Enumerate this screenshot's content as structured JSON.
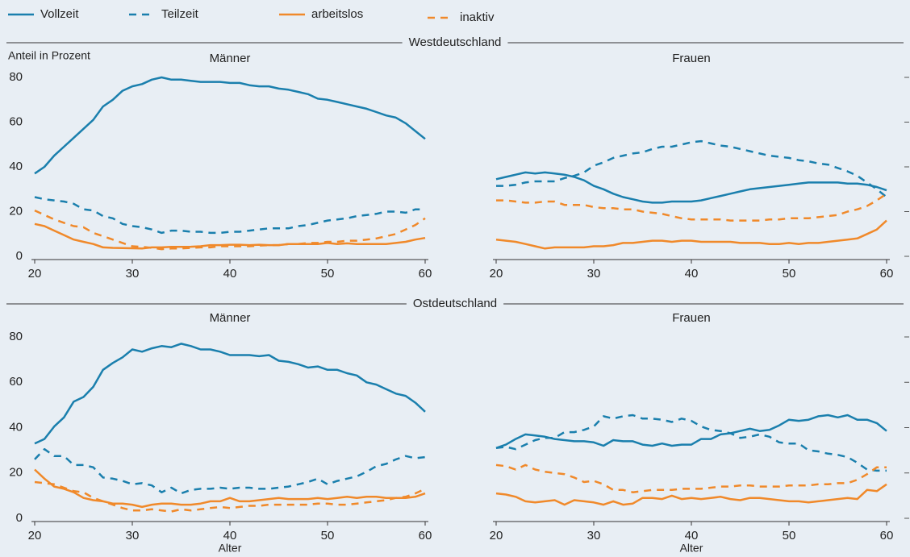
{
  "sections": [
    "Westdeutschland",
    "Ostdeutschland"
  ],
  "chart_data": [
    {
      "type": "line",
      "title": "Männer",
      "ylabel": "Anteil in Prozent",
      "section": 0,
      "yaxis_side": "left",
      "x": [
        20,
        21,
        22,
        23,
        24,
        25,
        26,
        27,
        28,
        29,
        30,
        31,
        32,
        33,
        34,
        35,
        36,
        37,
        38,
        39,
        40,
        41,
        42,
        43,
        44,
        45,
        46,
        47,
        48,
        49,
        50,
        51,
        52,
        53,
        54,
        55,
        56,
        57,
        58,
        59,
        60
      ],
      "xlim": [
        20,
        60
      ],
      "xticks": [
        20,
        30,
        40,
        50,
        60
      ],
      "ylim": [
        0,
        80
      ],
      "yticks": [
        0,
        20,
        40,
        60,
        80
      ],
      "series": [
        {
          "name": "Vollzeit",
          "color": "#1a7fad",
          "dashed": false,
          "values": [
            37,
            40,
            45,
            49,
            53,
            57,
            61,
            67,
            70,
            74,
            76,
            77,
            79,
            80,
            79,
            79,
            78.5,
            78,
            78,
            78,
            77.5,
            77.5,
            76.5,
            76,
            76,
            75,
            74.5,
            73.5,
            72.5,
            70.5,
            70,
            69,
            68,
            67,
            66,
            64.5,
            63,
            62,
            59.5,
            56,
            52.5
          ]
        },
        {
          "name": "Teilzeit",
          "color": "#1a7fad",
          "dashed": true,
          "values": [
            26.5,
            25.5,
            25,
            24.5,
            23.5,
            21,
            20.5,
            18,
            17,
            14.5,
            13.5,
            13,
            12,
            10.5,
            11.5,
            11.5,
            11,
            11,
            10.5,
            10.5,
            11,
            11,
            11.5,
            12,
            12.5,
            12.5,
            12.5,
            13.5,
            14,
            15,
            16,
            16.5,
            17,
            18,
            18.5,
            19,
            20,
            20,
            19.5,
            21,
            21
          ]
        },
        {
          "name": "arbeitslos",
          "color": "#f0892a",
          "dashed": false,
          "values": [
            14.5,
            13.5,
            11.5,
            9.5,
            7.5,
            6.5,
            5.5,
            4,
            3.8,
            3.7,
            3.6,
            3.5,
            4,
            4,
            4.2,
            4.2,
            4.3,
            4.5,
            5,
            5,
            5.2,
            5.2,
            5,
            5.2,
            5,
            5,
            5.5,
            5.5,
            5.5,
            5.5,
            6,
            5.5,
            5.8,
            5.5,
            5.5,
            5.5,
            5.5,
            6,
            6.5,
            7.5,
            8.2
          ]
        },
        {
          "name": "inaktiv",
          "color": "#f0892a",
          "dashed": true,
          "values": [
            20.5,
            18.5,
            16.5,
            15,
            13.5,
            13,
            10.5,
            9,
            7.5,
            6,
            4.5,
            4.2,
            3.8,
            3.2,
            3.5,
            3.5,
            3.8,
            4,
            4,
            4.5,
            4.5,
            4.5,
            4.5,
            4.8,
            5,
            5,
            5.5,
            5.5,
            6,
            6,
            6.5,
            6.5,
            7,
            7,
            7.5,
            8,
            9,
            10,
            12,
            14,
            17
          ]
        }
      ]
    },
    {
      "type": "line",
      "title": "Frauen",
      "section": 0,
      "yaxis_side": "right",
      "x": [
        20,
        21,
        22,
        23,
        24,
        25,
        26,
        27,
        28,
        29,
        30,
        31,
        32,
        33,
        34,
        35,
        36,
        37,
        38,
        39,
        40,
        41,
        42,
        43,
        44,
        45,
        46,
        47,
        48,
        49,
        50,
        51,
        52,
        53,
        54,
        55,
        56,
        57,
        58,
        59,
        60
      ],
      "xlim": [
        20,
        60
      ],
      "xticks": [
        20,
        30,
        40,
        50,
        60
      ],
      "ylim": [
        0,
        80
      ],
      "yticks": [
        0,
        20,
        40,
        60,
        80
      ],
      "series": [
        {
          "name": "Vollzeit",
          "color": "#1a7fad",
          "dashed": false,
          "values": [
            34.5,
            35.5,
            36.5,
            37.5,
            37,
            37.5,
            37,
            36.5,
            35.5,
            34,
            31.5,
            30,
            28,
            26.5,
            25.5,
            24.5,
            24,
            24,
            24.5,
            24.5,
            24.5,
            25,
            26,
            27,
            28,
            29,
            30,
            30.5,
            31,
            31.5,
            32,
            32.5,
            33,
            33,
            33,
            33,
            32.5,
            32.5,
            32,
            31,
            29.5
          ]
        },
        {
          "name": "Teilzeit",
          "color": "#1a7fad",
          "dashed": true,
          "values": [
            31.5,
            31.5,
            32,
            33,
            33.5,
            33.5,
            33.5,
            35,
            36,
            37.5,
            40.5,
            42,
            44,
            45,
            46,
            46.5,
            48,
            49,
            49,
            50,
            51,
            51.5,
            50.5,
            49.5,
            49,
            48,
            47,
            46,
            45,
            44.5,
            44,
            43,
            42.5,
            41.5,
            41,
            39.5,
            38,
            36,
            33,
            30,
            26.5
          ]
        },
        {
          "name": "arbeitslos",
          "color": "#f0892a",
          "dashed": false,
          "values": [
            7.5,
            7,
            6.5,
            5.5,
            4.5,
            3.5,
            4,
            4,
            4,
            4,
            4.5,
            4.5,
            5,
            6,
            6,
            6.5,
            7,
            7,
            6.5,
            7,
            7,
            6.5,
            6.5,
            6.5,
            6.5,
            6,
            6,
            6,
            5.5,
            5.5,
            6,
            5.5,
            6,
            6,
            6.5,
            7,
            7.5,
            8,
            10,
            12,
            16
          ]
        },
        {
          "name": "inaktiv",
          "color": "#f0892a",
          "dashed": true,
          "values": [
            25,
            25,
            24.5,
            24,
            24,
            24.5,
            24.5,
            23,
            23,
            23,
            22,
            21.5,
            21.5,
            21,
            21,
            20,
            19.5,
            19,
            18,
            17,
            16.5,
            16.5,
            16.5,
            16.5,
            16,
            16,
            16,
            16,
            16.5,
            16.5,
            17,
            17,
            17,
            17.5,
            18,
            18.5,
            20,
            21,
            22.5,
            25,
            28
          ]
        }
      ]
    },
    {
      "type": "line",
      "title": "Männer",
      "xlabel": "Alter",
      "section": 1,
      "yaxis_side": "left",
      "x": [
        20,
        21,
        22,
        23,
        24,
        25,
        26,
        27,
        28,
        29,
        30,
        31,
        32,
        33,
        34,
        35,
        36,
        37,
        38,
        39,
        40,
        41,
        42,
        43,
        44,
        45,
        46,
        47,
        48,
        49,
        50,
        51,
        52,
        53,
        54,
        55,
        56,
        57,
        58,
        59,
        60
      ],
      "xlim": [
        20,
        60
      ],
      "xticks": [
        20,
        30,
        40,
        50,
        60
      ],
      "ylim": [
        0,
        80
      ],
      "yticks": [
        0,
        20,
        40,
        60,
        80
      ],
      "series": [
        {
          "name": "Vollzeit",
          "color": "#1a7fad",
          "dashed": false,
          "values": [
            33,
            35,
            40.5,
            44.5,
            51.5,
            53.5,
            58,
            65.5,
            68.5,
            71,
            74.5,
            73.5,
            75,
            76,
            75.5,
            77,
            76,
            74.5,
            74.5,
            73.5,
            72,
            72,
            72,
            71.5,
            72,
            69.5,
            69,
            68,
            66.5,
            67,
            65.5,
            65.5,
            64,
            63,
            60,
            59,
            57,
            55,
            54,
            51,
            47
          ]
        },
        {
          "name": "Teilzeit",
          "color": "#1a7fad",
          "dashed": true,
          "values": [
            26,
            30.5,
            27.5,
            27.5,
            23.5,
            23.5,
            22.5,
            18,
            17.5,
            16.5,
            15,
            15.5,
            14.5,
            11.5,
            13.5,
            11,
            12.5,
            13,
            13,
            13.5,
            13,
            13.5,
            13.5,
            13,
            13,
            13.5,
            14,
            15,
            16,
            17.5,
            15,
            16.5,
            17.5,
            18.5,
            20.5,
            23,
            24,
            26,
            27.5,
            26.5,
            27
          ]
        },
        {
          "name": "arbeitslos",
          "color": "#f0892a",
          "dashed": false,
          "values": [
            21.5,
            17.5,
            14,
            13,
            11.5,
            9,
            8,
            7.5,
            6.5,
            6.5,
            6,
            5,
            6,
            6.5,
            6.5,
            6,
            6,
            6.5,
            7.5,
            7.5,
            9,
            7.5,
            7.5,
            8,
            8.5,
            9,
            8.5,
            8.5,
            8.5,
            9,
            8.5,
            9,
            9.5,
            9,
            9.5,
            9.5,
            9,
            9,
            9,
            9.5,
            11
          ]
        },
        {
          "name": "inaktiv",
          "color": "#f0892a",
          "dashed": true,
          "values": [
            16,
            15.5,
            15,
            13.5,
            12,
            11.5,
            9,
            7.5,
            6,
            4.5,
            3.5,
            3.5,
            4,
            3.5,
            3,
            4,
            3.5,
            4,
            4.5,
            5,
            4.5,
            5,
            5.5,
            5.5,
            6,
            6,
            6,
            6,
            6,
            6.5,
            6.5,
            6,
            6,
            6.5,
            7,
            7.5,
            8,
            9,
            9.5,
            11,
            13
          ]
        }
      ]
    },
    {
      "type": "line",
      "title": "Frauen",
      "xlabel": "Alter",
      "section": 1,
      "yaxis_side": "right",
      "x": [
        20,
        21,
        22,
        23,
        24,
        25,
        26,
        27,
        28,
        29,
        30,
        31,
        32,
        33,
        34,
        35,
        36,
        37,
        38,
        39,
        40,
        41,
        42,
        43,
        44,
        45,
        46,
        47,
        48,
        49,
        50,
        51,
        52,
        53,
        54,
        55,
        56,
        57,
        58,
        59,
        60
      ],
      "xlim": [
        20,
        60
      ],
      "xticks": [
        20,
        30,
        40,
        50,
        60
      ],
      "ylim": [
        0,
        80
      ],
      "yticks": [
        0,
        20,
        40,
        60,
        80
      ],
      "series": [
        {
          "name": "Vollzeit",
          "color": "#1a7fad",
          "dashed": false,
          "values": [
            31,
            32.5,
            35,
            37,
            36.5,
            36,
            35,
            34.5,
            34,
            34,
            33.5,
            32,
            34.5,
            34,
            34,
            32.5,
            32,
            33,
            32,
            32.5,
            32.5,
            35,
            35,
            37,
            37.5,
            38.5,
            39.5,
            38.5,
            39,
            41,
            43.5,
            43,
            43.5,
            45,
            45.5,
            44.5,
            45.5,
            43.5,
            43.5,
            42,
            38.5
          ]
        },
        {
          "name": "Teilzeit",
          "color": "#1a7fad",
          "dashed": true,
          "values": [
            31,
            31.5,
            30.5,
            32.5,
            34.5,
            35.5,
            35.5,
            38,
            38,
            39,
            40.5,
            45,
            44,
            45,
            45.5,
            44,
            44,
            43.5,
            42.5,
            44,
            43,
            40.5,
            39,
            38.5,
            37.5,
            35.5,
            36,
            37,
            36,
            33.5,
            33,
            33,
            30,
            29.5,
            28.5,
            28,
            27,
            24.5,
            21.5,
            21,
            21
          ]
        },
        {
          "name": "arbeitslos",
          "color": "#f0892a",
          "dashed": false,
          "values": [
            11,
            10.5,
            9.5,
            7.5,
            7,
            7.5,
            8,
            6,
            8,
            7.5,
            7,
            6,
            7.5,
            6,
            6.5,
            9,
            9,
            8.5,
            10,
            8.5,
            9,
            8.5,
            9,
            9.5,
            8.5,
            8,
            9,
            9,
            8.5,
            8,
            7.5,
            7.5,
            7,
            7.5,
            8,
            8.5,
            9,
            8.5,
            12.5,
            12,
            15
          ]
        },
        {
          "name": "inaktiv",
          "color": "#f0892a",
          "dashed": true,
          "values": [
            23.5,
            23,
            21.5,
            23.5,
            21.5,
            20.5,
            20,
            19.5,
            18,
            16,
            16.5,
            15,
            12.5,
            12.5,
            11.5,
            12,
            12.5,
            12.5,
            12.5,
            13,
            13,
            13,
            13.5,
            14,
            14,
            14.5,
            14.5,
            14,
            14,
            14,
            14.5,
            14.5,
            14.5,
            15,
            15,
            15.5,
            15.5,
            17,
            19.5,
            22.5,
            22.5
          ]
        }
      ]
    }
  ]
}
